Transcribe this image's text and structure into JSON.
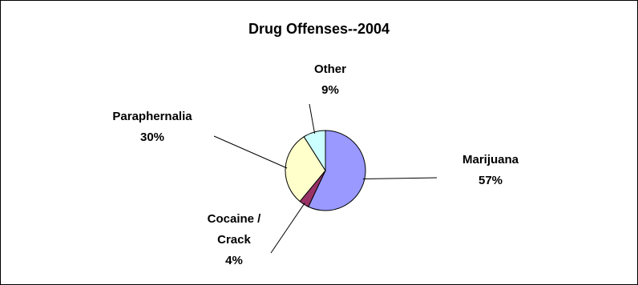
{
  "chart_data": {
    "type": "pie",
    "title": "Drug Offenses--2004",
    "slices": [
      {
        "label": "Marijuana",
        "value": 57,
        "display": "57%",
        "color": "#9999ff"
      },
      {
        "label": "Cocaine / Crack",
        "label_lines": [
          "Cocaine /",
          "Crack"
        ],
        "value": 4,
        "display": "4%",
        "color": "#993366"
      },
      {
        "label": "Paraphernalia",
        "value": 30,
        "display": "30%",
        "color": "#ffffcc"
      },
      {
        "label": "Other",
        "value": 9,
        "display": "9%",
        "color": "#ccffff"
      }
    ],
    "start_angle_deg": 0,
    "direction": "clockwise",
    "legend": "none"
  }
}
